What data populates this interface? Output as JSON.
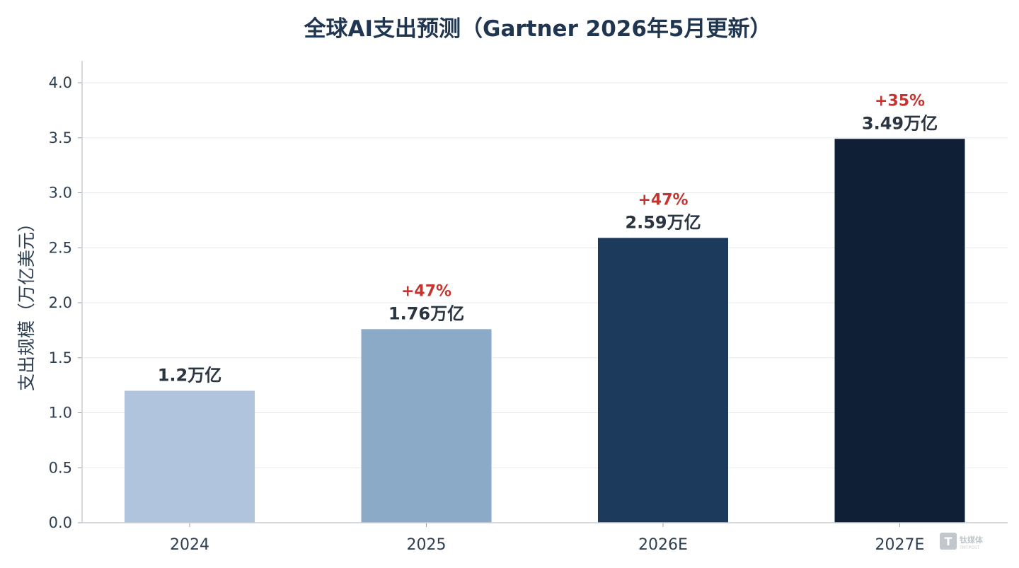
{
  "chart_data": {
    "type": "bar",
    "title": "全球AI支出预测（Gartner 2026年5月更新）",
    "ylabel": "支出规模（万亿美元）",
    "xlabel": "",
    "ylim": [
      0,
      4.0
    ],
    "yticks": [
      "0.0",
      "0.5",
      "1.0",
      "1.5",
      "2.0",
      "2.5",
      "3.0",
      "3.5",
      "4.0"
    ],
    "grid": true,
    "categories": [
      "2024",
      "2025",
      "2026E",
      "2027E"
    ],
    "values": [
      1.2,
      1.76,
      2.59,
      3.49
    ],
    "value_labels": [
      "1.2万亿",
      "1.76万亿",
      "2.59万亿",
      "3.49万亿"
    ],
    "growth_labels": [
      "",
      "+47%",
      "+47%",
      "+35%"
    ],
    "bar_colors": [
      "#b0c5dd",
      "#8baac8",
      "#1c3a5c",
      "#0f1f36"
    ],
    "growth_color": "#c7332e"
  },
  "watermark": {
    "glyph": "T",
    "name": "钛媒体",
    "sub": "TMTPOST",
    "color": "#c2c7cd"
  }
}
